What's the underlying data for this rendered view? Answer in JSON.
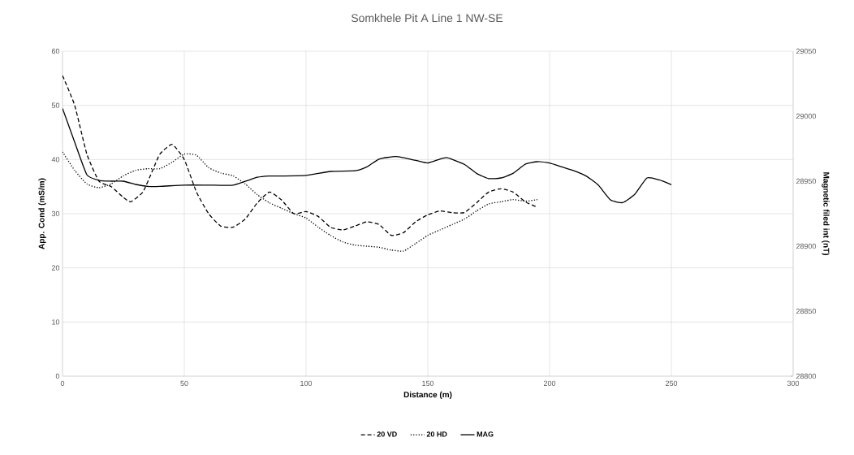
{
  "chart_data": {
    "type": "line",
    "title": "Somkhele Pit A Line 1 NW-SE",
    "xlabel": "Distance (m)",
    "ylabel": "App. Cond (mS/m)",
    "y2label": "Magnetic filed int (nT)",
    "xlim": [
      0,
      300
    ],
    "xticks": [
      0,
      50,
      100,
      150,
      200,
      250,
      300
    ],
    "ylim": [
      0,
      60
    ],
    "yticks": [
      0,
      10,
      20,
      30,
      40,
      50,
      60
    ],
    "y2lim": [
      28800,
      29050
    ],
    "y2ticks": [
      28800,
      28850,
      28900,
      28950,
      29000,
      29050
    ],
    "grid": true,
    "legend": "bottom",
    "marker": "none",
    "series": [
      {
        "name": "20 VD",
        "color": "#000000",
        "line_style": "dashed",
        "x": [
          0,
          5,
          10,
          15,
          20,
          25,
          28,
          33,
          37,
          40,
          45,
          50,
          55,
          60,
          65,
          70,
          75,
          80,
          85,
          90,
          95,
          100,
          105,
          110,
          115,
          120,
          125,
          130,
          135,
          140,
          145,
          150,
          155,
          160,
          165,
          170,
          175,
          180,
          185,
          190,
          195
        ],
        "values": [
          55.5,
          50,
          41,
          36,
          35,
          33,
          32.2,
          34,
          38,
          41,
          42.8,
          40,
          34,
          30,
          27.7,
          27.5,
          29,
          32,
          34,
          32.5,
          30,
          30.4,
          29.5,
          27.5,
          27,
          27.7,
          28.5,
          28,
          26,
          26.5,
          28.5,
          29.8,
          30.5,
          30.2,
          30.2,
          32,
          34,
          34.6,
          34,
          32.2,
          31.2
        ]
      },
      {
        "name": "20 HD",
        "color": "#000000",
        "line_style": "dotted",
        "x": [
          0,
          5,
          10,
          15,
          20,
          25,
          30,
          35,
          40,
          45,
          50,
          55,
          60,
          65,
          70,
          75,
          80,
          85,
          90,
          95,
          100,
          105,
          110,
          115,
          120,
          125,
          130,
          135,
          140,
          145,
          150,
          155,
          160,
          165,
          170,
          175,
          180,
          185,
          190,
          195
        ],
        "values": [
          41.4,
          38,
          35.5,
          34.8,
          35.5,
          37,
          38,
          38.3,
          38.3,
          39.5,
          41,
          40.8,
          38.5,
          37.5,
          37,
          35.5,
          33.5,
          32,
          31,
          30,
          29.2,
          27.5,
          26,
          24.8,
          24.2,
          24,
          23.8,
          23.3,
          23.1,
          24.5,
          26,
          27,
          28,
          29,
          30.5,
          31.8,
          32.2,
          32.6,
          32.3,
          32.6
        ]
      },
      {
        "name": "MAG",
        "color": "#000000",
        "line_style": "solid",
        "axis": "y2",
        "x": [
          0,
          5,
          10,
          15,
          20,
          25,
          30,
          35,
          40,
          50,
          60,
          70,
          80,
          85,
          90,
          100,
          110,
          120,
          125,
          130,
          137,
          145,
          150,
          155,
          158,
          165,
          170,
          175,
          180,
          185,
          190,
          195,
          200,
          205,
          210,
          215,
          220,
          225,
          230,
          235,
          240,
          245,
          250
        ],
        "values": [
          29006,
          28980,
          28955,
          28950.6,
          28950,
          28950,
          28947.5,
          28946,
          28946,
          28947,
          28947,
          28947,
          28953,
          28954,
          28954,
          28954.4,
          28957.5,
          28958,
          28961,
          28967,
          28969,
          28966,
          28964,
          28967,
          28968,
          28963,
          28956,
          28952,
          28952.5,
          28956,
          28963,
          28965,
          28964,
          28961,
          28958,
          28954,
          28947,
          28935.6,
          28933.5,
          28940,
          28952.5,
          28951,
          28947.3
        ]
      }
    ]
  }
}
